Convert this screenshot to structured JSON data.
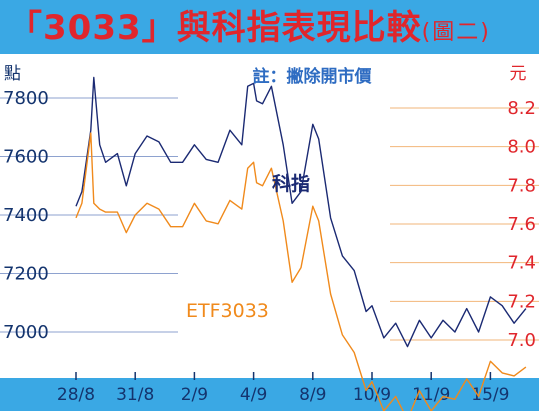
{
  "header": {
    "title": "「3033」與科指表現比較",
    "subtitle": "(圖二)"
  },
  "note": "註：撇除開市價",
  "colors": {
    "title_bg": "#3aa8e4",
    "title_text": "#e0262c",
    "left_axis": "#14346e",
    "right_axis": "#e0262c",
    "index_line": "#1b2a73",
    "etf_line": "#f08a1c",
    "grid_left": "#8ea2cf",
    "grid_right": "#f2b679",
    "note_text": "#2e6cc2"
  },
  "chart_data": {
    "type": "line",
    "xlabel": "",
    "categories": [
      "28/8",
      "31/8",
      "2/9",
      "4/9",
      "8/9",
      "10/9",
      "11/9",
      "15/9"
    ],
    "left_axis": {
      "unit": "點",
      "ticks": [
        "7800",
        "7600",
        "7400",
        "7200",
        "7000"
      ],
      "ylim": [
        6880,
        7960
      ]
    },
    "right_axis": {
      "unit": "元",
      "ticks": [
        "8.2",
        "8.0",
        "7.8",
        "7.6",
        "7.4",
        "7.2",
        "7.0"
      ],
      "ylim": [
        6.9,
        8.3
      ]
    },
    "series": [
      {
        "name": "科指",
        "axis": "left",
        "x": [
          0,
          0.1,
          0.25,
          0.3,
          0.4,
          0.5,
          0.7,
          0.85,
          1,
          1.2,
          1.4,
          1.6,
          1.8,
          2,
          2.2,
          2.4,
          2.6,
          2.8,
          2.9,
          3,
          3.05,
          3.15,
          3.3,
          3.5,
          3.65,
          3.8,
          4,
          4.1,
          4.3,
          4.5,
          4.7,
          4.9,
          5,
          5.2,
          5.4,
          5.6,
          5.8,
          6,
          6.2,
          6.4,
          6.6,
          6.8,
          7,
          7.2,
          7.4,
          7.6
        ],
        "values": [
          7430,
          7480,
          7690,
          7870,
          7640,
          7580,
          7610,
          7500,
          7610,
          7670,
          7650,
          7580,
          7580,
          7640,
          7590,
          7580,
          7690,
          7640,
          7840,
          7850,
          7790,
          7780,
          7840,
          7640,
          7440,
          7480,
          7710,
          7660,
          7390,
          7260,
          7210,
          7070,
          7090,
          6980,
          7030,
          6950,
          7040,
          6980,
          7040,
          7000,
          7080,
          7000,
          7120,
          7090,
          7030,
          7080
        ]
      },
      {
        "name": "ETF3033",
        "axis": "left",
        "x": [
          0,
          0.1,
          0.25,
          0.3,
          0.4,
          0.5,
          0.7,
          0.85,
          1,
          1.2,
          1.4,
          1.6,
          1.8,
          2,
          2.2,
          2.4,
          2.6,
          2.8,
          2.9,
          3,
          3.05,
          3.15,
          3.3,
          3.5,
          3.65,
          3.8,
          4,
          4.1,
          4.3,
          4.5,
          4.7,
          4.9,
          5,
          5.2,
          5.4,
          5.6,
          5.8,
          6,
          6.2,
          6.4,
          6.6,
          6.8,
          7,
          7.2,
          7.4,
          7.6
        ],
        "values": [
          7390,
          7440,
          7680,
          7440,
          7420,
          7410,
          7410,
          7340,
          7400,
          7440,
          7420,
          7360,
          7360,
          7440,
          7380,
          7370,
          7450,
          7420,
          7560,
          7580,
          7510,
          7500,
          7560,
          7380,
          7170,
          7220,
          7430,
          7380,
          7130,
          6990,
          6930,
          6800,
          6830,
          6730,
          6780,
          6700,
          6800,
          6730,
          6780,
          6770,
          6840,
          6780,
          6900,
          6860,
          6850,
          6880
        ]
      }
    ],
    "annotations": [
      "科指",
      "ETF3033"
    ],
    "grid": true,
    "legend": "none"
  }
}
